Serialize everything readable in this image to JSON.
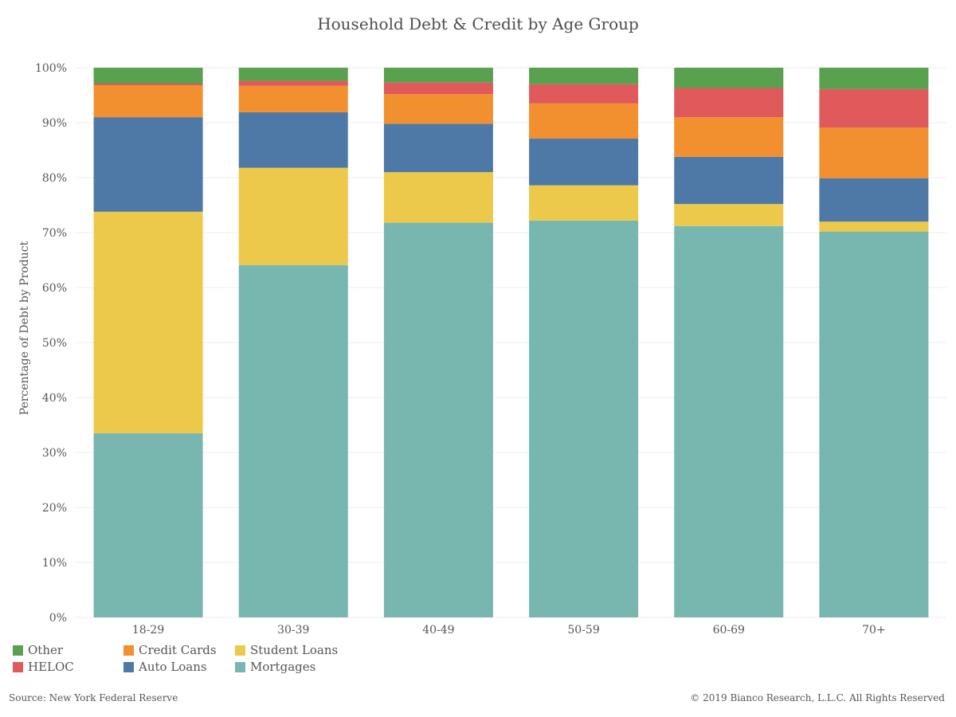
{
  "chart_data": {
    "type": "bar",
    "stacked": true,
    "normalized": true,
    "title": "Household Debt & Credit by Age Group",
    "xlabel": "",
    "ylabel": "Percentage of Debt by Product",
    "categories": [
      "18-29",
      "30-39",
      "40-49",
      "50-59",
      "60-69",
      "70+"
    ],
    "ylim": [
      0,
      100
    ],
    "yticks": [
      "0%",
      "10%",
      "20%",
      "30%",
      "40%",
      "50%",
      "60%",
      "70%",
      "80%",
      "90%",
      "100%"
    ],
    "grid": true,
    "legend_position": "bottom-left",
    "series": [
      {
        "name": "Mortgages",
        "color": "#78b6b0",
        "values": [
          33.5,
          64.1,
          71.8,
          72.2,
          71.2,
          70.2
        ]
      },
      {
        "name": "Student Loans",
        "color": "#ecc94b",
        "values": [
          40.3,
          17.7,
          9.2,
          6.4,
          4.0,
          1.8
        ]
      },
      {
        "name": "Auto Loans",
        "color": "#4e79a6",
        "values": [
          17.2,
          10.1,
          8.8,
          8.5,
          8.6,
          7.9
        ]
      },
      {
        "name": "Credit Cards",
        "color": "#f28f2f",
        "values": [
          5.8,
          4.8,
          5.4,
          6.4,
          7.2,
          9.2
        ]
      },
      {
        "name": "HELOC",
        "color": "#e0595b",
        "values": [
          0.3,
          0.9,
          2.1,
          3.5,
          5.3,
          7.0
        ]
      },
      {
        "name": "Other",
        "color": "#59a14f",
        "values": [
          2.9,
          2.4,
          2.7,
          3.0,
          3.7,
          3.9
        ]
      }
    ]
  },
  "legend": {
    "items": [
      {
        "label": "Other",
        "color": "#59a14f"
      },
      {
        "label": "Credit Cards",
        "color": "#f28f2f"
      },
      {
        "label": "Student Loans",
        "color": "#ecc94b"
      },
      {
        "label": "HELOC",
        "color": "#e0595b"
      },
      {
        "label": "Auto Loans",
        "color": "#4e79a6"
      },
      {
        "label": "Mortgages",
        "color": "#78b6b0"
      }
    ]
  },
  "footer": {
    "source": "Source: New York Federal Reserve",
    "copyright": "© 2019 Bianco Research, L.L.C. All Rights Reserved"
  }
}
